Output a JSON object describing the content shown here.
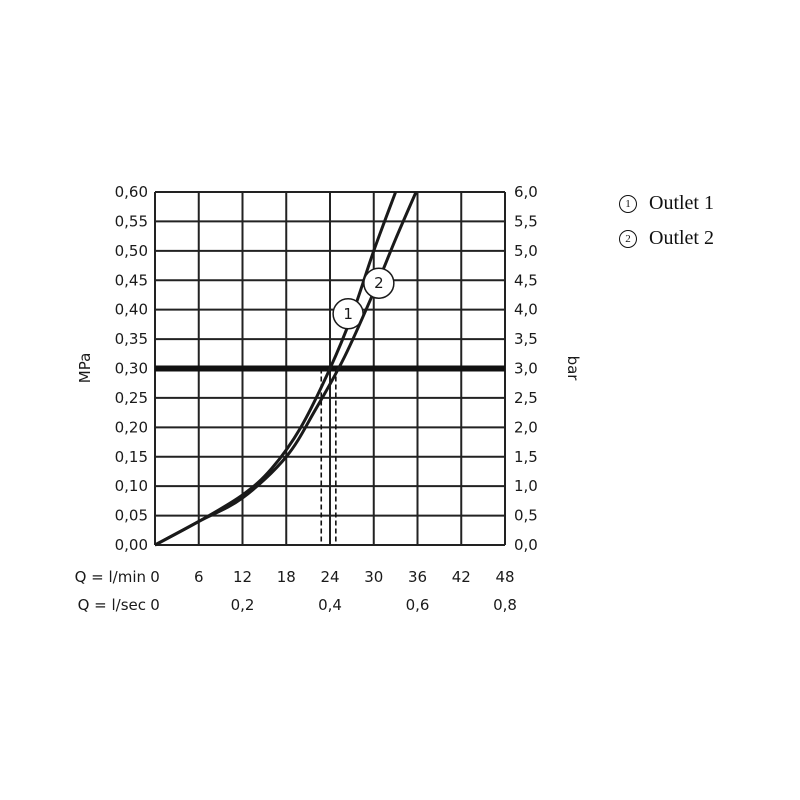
{
  "chart_data": {
    "type": "line",
    "x_flow_lmin_ticks": [
      "0",
      "6",
      "12",
      "18",
      "24",
      "30",
      "36",
      "42",
      "48"
    ],
    "x_flow_lsec_ticks": [
      "0",
      "0,2",
      "0,4",
      "0,6",
      "0,8"
    ],
    "x_flow_lmin_label": "Q = l/min",
    "x_flow_lsec_label": "Q = l/sec",
    "y_left_label": "MPa",
    "y_right_label": "bar",
    "y_left_ticks": [
      "0,00",
      "0,05",
      "0,10",
      "0,15",
      "0,20",
      "0,25",
      "0,30",
      "0,35",
      "0,40",
      "0,45",
      "0,50",
      "0,55",
      "0,60"
    ],
    "y_right_ticks": [
      "0,0",
      "0,5",
      "1,0",
      "1,5",
      "2,0",
      "2,5",
      "3,0",
      "3,5",
      "4,0",
      "4,5",
      "5,0",
      "5,5",
      "6,0"
    ],
    "xlim": [
      0,
      48
    ],
    "ylim": [
      0,
      0.6
    ],
    "grid": true,
    "reference_pressure_mpa": 0.3,
    "reference_flows_lmin": [
      22.8,
      24.8
    ],
    "series": [
      {
        "marker": "1",
        "name": "Outlet 1",
        "x": [
          0,
          6,
          12,
          16,
          20,
          24,
          27,
          30,
          33
        ],
        "y": [
          0,
          0.04,
          0.085,
          0.13,
          0.2,
          0.3,
          0.39,
          0.5,
          0.6
        ]
      },
      {
        "marker": "2",
        "name": "Outlet 2",
        "x": [
          0,
          6,
          12,
          18,
          22,
          26,
          30,
          33,
          35.8
        ],
        "y": [
          0,
          0.04,
          0.08,
          0.15,
          0.23,
          0.32,
          0.43,
          0.52,
          0.6
        ]
      }
    ]
  },
  "legend": [
    {
      "badge": "1",
      "label": "Outlet 1"
    },
    {
      "badge": "2",
      "label": "Outlet 2"
    }
  ]
}
